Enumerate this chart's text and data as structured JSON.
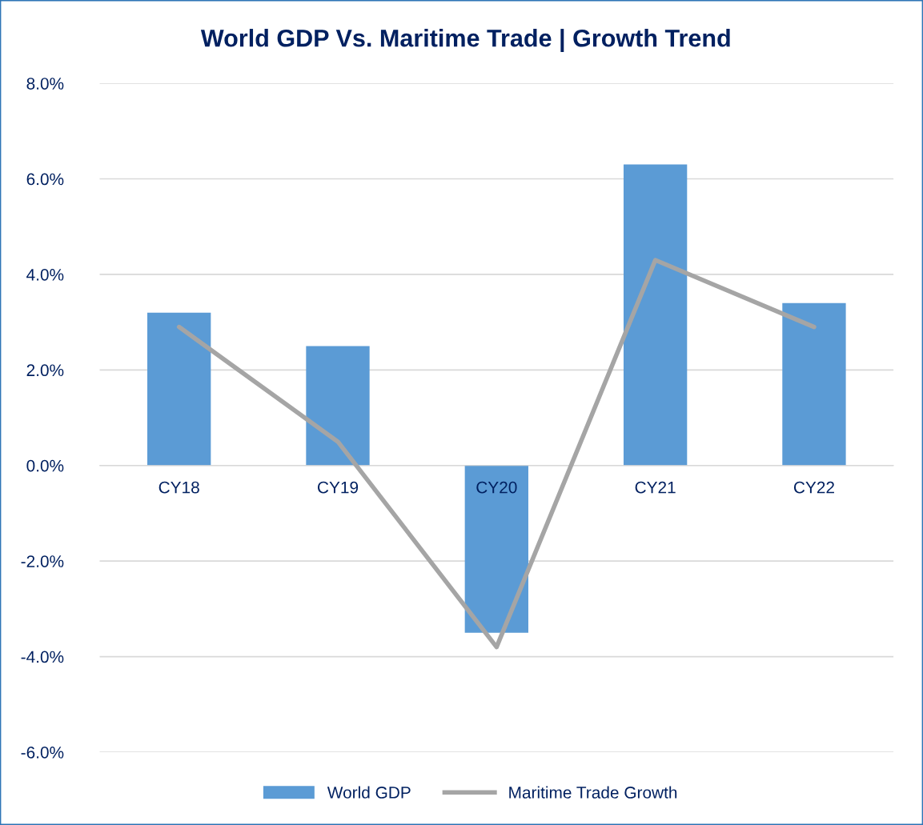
{
  "chart_data": {
    "type": "bar",
    "title": "World GDP Vs. Maritime Trade | Growth Trend",
    "categories": [
      "CY18",
      "CY19",
      "CY20",
      "CY21",
      "CY22"
    ],
    "series": [
      {
        "name": "World GDP",
        "color": "#5b9bd5",
        "values": [
          3.2,
          2.5,
          -3.5,
          6.3,
          3.4
        ]
      },
      {
        "name": "Maritime Trade Growth",
        "type": "line",
        "color": "#a5a5a5",
        "values": [
          2.9,
          0.5,
          -3.8,
          4.3,
          2.9
        ]
      }
    ],
    "ylim": [
      -6,
      8
    ],
    "yticks": [
      {
        "value": -6,
        "label": "-6.0%"
      },
      {
        "value": -4,
        "label": "-4.0%"
      },
      {
        "value": -2,
        "label": "-2.0%"
      },
      {
        "value": 0,
        "label": "0.0%"
      },
      {
        "value": 2,
        "label": "2.0%"
      },
      {
        "value": 4,
        "label": "4.0%"
      },
      {
        "value": 6,
        "label": "6.0%"
      },
      {
        "value": 8,
        "label": "8.0%"
      }
    ],
    "grid": "y",
    "legend": "bottom",
    "marker": "none",
    "line_style": "solid"
  }
}
